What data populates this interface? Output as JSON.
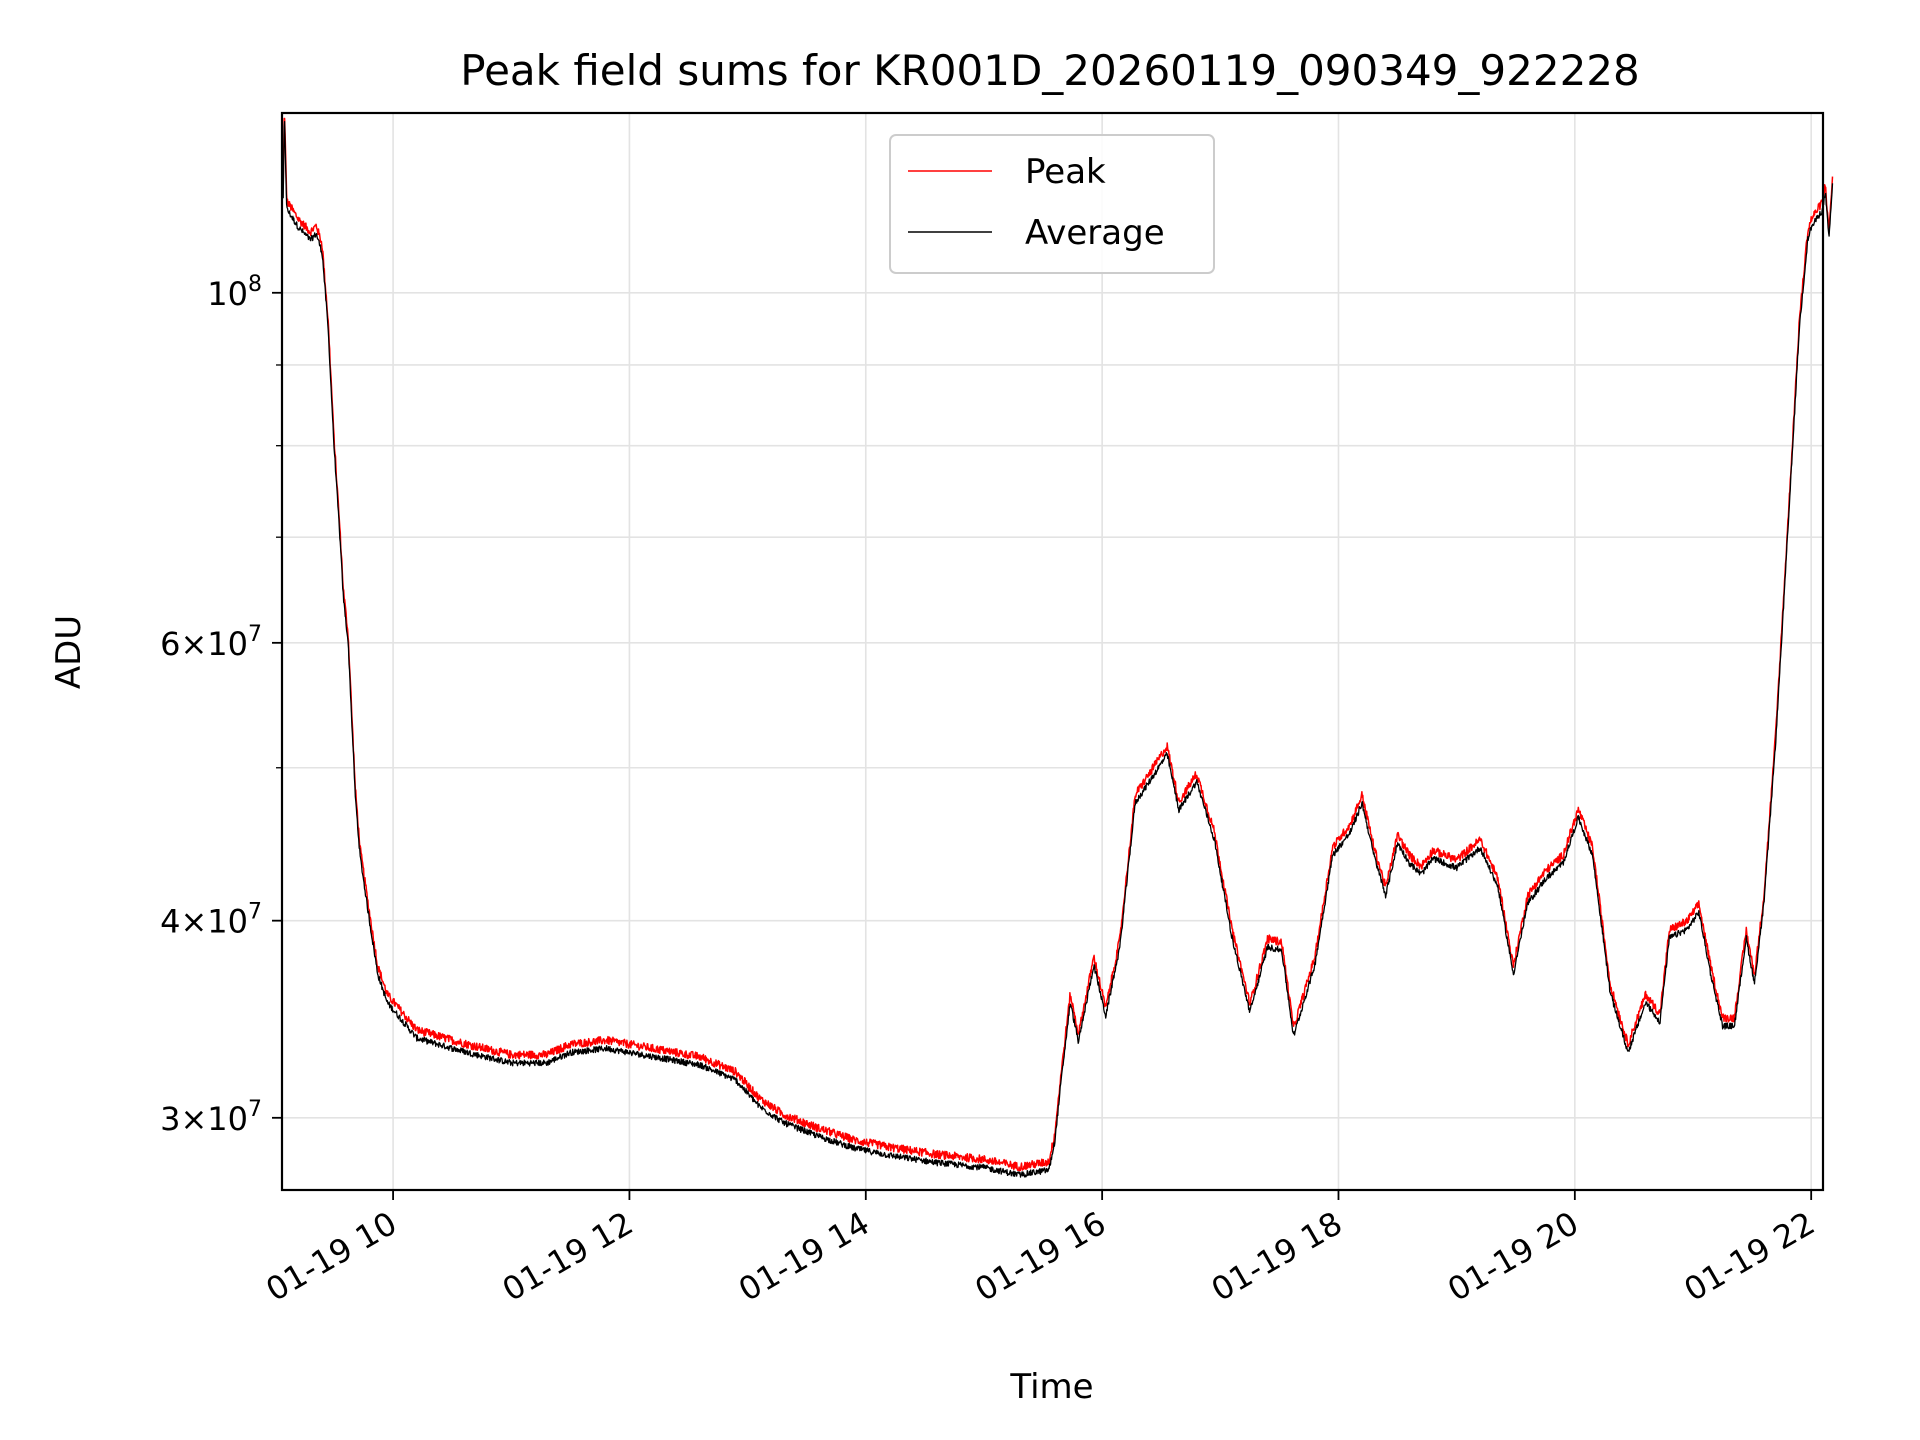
{
  "chart_data": {
    "type": "line",
    "title": "Peak field sums for KR001D_20260119_090349_922228",
    "xlabel": "Time",
    "ylabel": "ADU",
    "x_unit": "hours",
    "xlim": [
      9.06,
      22.1
    ],
    "ylim": [
      27000000,
      130000000
    ],
    "y_scale": "log",
    "grid": true,
    "legend_position": "upper center",
    "x_ticks": [
      {
        "value": 10,
        "label": "01-19 10"
      },
      {
        "value": 12,
        "label": "01-19 12"
      },
      {
        "value": 14,
        "label": "01-19 14"
      },
      {
        "value": 16,
        "label": "01-19 16"
      },
      {
        "value": 18,
        "label": "01-19 18"
      },
      {
        "value": 20,
        "label": "01-19 20"
      },
      {
        "value": 22,
        "label": "01-19 22"
      }
    ],
    "y_major_ticks": [
      {
        "value": 100000000,
        "base": "10",
        "exp": "8"
      }
    ],
    "y_sci_ticks": [
      {
        "value": 30000000,
        "mant": "3",
        "times": "×",
        "base": "10",
        "exp": "7"
      },
      {
        "value": 40000000,
        "mant": "4",
        "times": "×",
        "base": "10",
        "exp": "7"
      },
      {
        "value": 60000000,
        "mant": "6",
        "times": "×",
        "base": "10",
        "exp": "7"
      }
    ],
    "y_minor_ticks": [
      50000000,
      70000000,
      80000000,
      90000000
    ],
    "series": [
      {
        "name": "Peak",
        "color": "#ff0000",
        "offset_ratio": 1.012,
        "noise_ratio": 0.012
      },
      {
        "name": "Average",
        "color": "#000000",
        "offset_ratio": 1.0,
        "noise_ratio": 0.009
      }
    ],
    "anchor_points": [
      [
        9.07,
        115000000
      ],
      [
        9.08,
        130000000
      ],
      [
        9.1,
        113000000
      ],
      [
        9.2,
        110000000
      ],
      [
        9.3,
        108000000
      ],
      [
        9.35,
        109000000
      ],
      [
        9.4,
        106000000
      ],
      [
        9.45,
        95000000
      ],
      [
        9.5,
        80000000
      ],
      [
        9.55,
        70000000
      ],
      [
        9.58,
        64000000
      ],
      [
        9.62,
        60000000
      ],
      [
        9.68,
        48000000
      ],
      [
        9.72,
        44000000
      ],
      [
        9.8,
        40000000
      ],
      [
        9.87,
        37000000
      ],
      [
        9.95,
        35500000
      ],
      [
        10.2,
        33700000
      ],
      [
        10.5,
        33200000
      ],
      [
        10.7,
        32900000
      ],
      [
        11.0,
        32500000
      ],
      [
        11.3,
        32500000
      ],
      [
        11.5,
        33000000
      ],
      [
        11.8,
        33200000
      ],
      [
        12.0,
        33000000
      ],
      [
        12.3,
        32700000
      ],
      [
        12.6,
        32400000
      ],
      [
        12.9,
        31700000
      ],
      [
        13.1,
        30500000
      ],
      [
        13.3,
        29800000
      ],
      [
        13.6,
        29200000
      ],
      [
        13.9,
        28700000
      ],
      [
        14.2,
        28400000
      ],
      [
        14.6,
        28100000
      ],
      [
        15.0,
        27900000
      ],
      [
        15.3,
        27600000
      ],
      [
        15.55,
        27800000
      ],
      [
        15.6,
        29000000
      ],
      [
        15.65,
        31500000
      ],
      [
        15.73,
        35500000
      ],
      [
        15.8,
        33500000
      ],
      [
        15.93,
        37500000
      ],
      [
        16.03,
        34800000
      ],
      [
        16.15,
        38500000
      ],
      [
        16.28,
        47500000
      ],
      [
        16.4,
        49000000
      ],
      [
        16.55,
        51000000
      ],
      [
        16.65,
        47000000
      ],
      [
        16.8,
        49000000
      ],
      [
        16.95,
        45000000
      ],
      [
        17.1,
        39000000
      ],
      [
        17.25,
        35000000
      ],
      [
        17.4,
        38500000
      ],
      [
        17.52,
        38300000
      ],
      [
        17.62,
        33800000
      ],
      [
        17.8,
        37500000
      ],
      [
        17.95,
        44000000
      ],
      [
        18.1,
        45500000
      ],
      [
        18.2,
        47500000
      ],
      [
        18.3,
        44000000
      ],
      [
        18.4,
        41500000
      ],
      [
        18.5,
        44800000
      ],
      [
        18.6,
        43500000
      ],
      [
        18.7,
        42800000
      ],
      [
        18.8,
        43800000
      ],
      [
        19.0,
        43200000
      ],
      [
        19.2,
        44500000
      ],
      [
        19.35,
        42000000
      ],
      [
        19.48,
        37000000
      ],
      [
        19.6,
        41000000
      ],
      [
        19.75,
        42500000
      ],
      [
        19.9,
        43500000
      ],
      [
        20.03,
        46500000
      ],
      [
        20.15,
        44000000
      ],
      [
        20.3,
        36000000
      ],
      [
        20.45,
        33000000
      ],
      [
        20.6,
        35500000
      ],
      [
        20.72,
        34500000
      ],
      [
        20.8,
        39000000
      ],
      [
        20.95,
        39500000
      ],
      [
        21.05,
        40500000
      ],
      [
        21.15,
        37000000
      ],
      [
        21.25,
        34300000
      ],
      [
        21.35,
        34300000
      ],
      [
        21.45,
        39000000
      ],
      [
        21.52,
        36500000
      ],
      [
        21.6,
        41000000
      ],
      [
        21.7,
        52000000
      ],
      [
        21.8,
        70000000
      ],
      [
        21.9,
        95000000
      ],
      [
        21.97,
        108000000
      ],
      [
        22.0,
        110000000
      ],
      [
        22.1,
        113000000
      ],
      [
        22.12,
        116000000
      ],
      [
        22.15,
        108000000
      ],
      [
        22.18,
        117000000
      ]
    ]
  }
}
